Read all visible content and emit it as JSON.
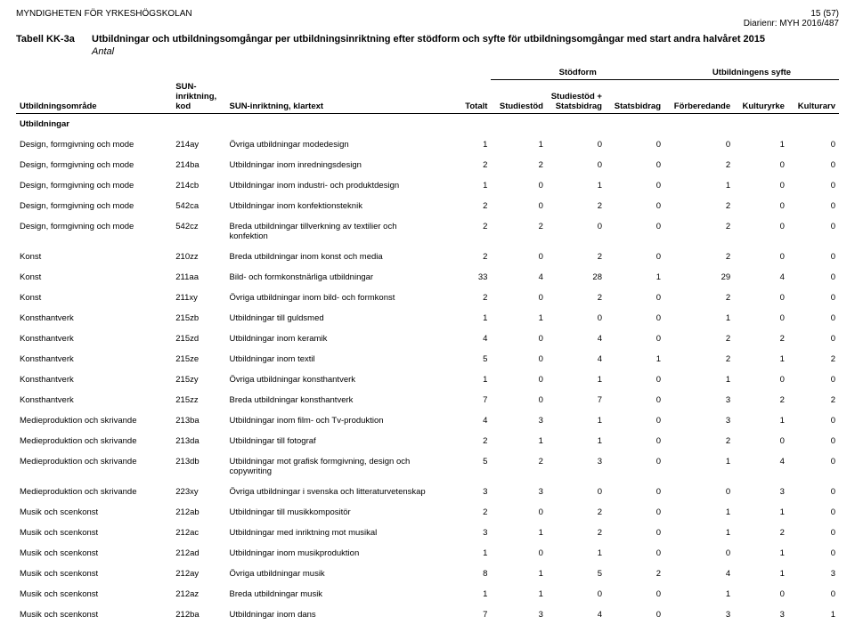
{
  "header": {
    "agency": "MYNDIGHETEN FÖR YRKESHÖGSKOLAN",
    "page_no": "15 (57)",
    "diarienr_label": "Diarienr:",
    "diarienr": "MYH 2016/487"
  },
  "title": {
    "table_label": "Tabell KK-3a",
    "text": "Utbildningar och utbildningsomgångar per utbildningsinriktning efter stödform och syfte för utbildningsomgångar med start andra halvåret 2015",
    "subtitle": "Antal"
  },
  "columns": {
    "area": "Utbildningsområde",
    "kod_line1": "SUN-",
    "kod_line2": "inriktning,",
    "kod_line3": "kod",
    "klartext": "SUN-inriktning, klartext",
    "totalt": "Totalt",
    "stodform_group": "Stödform",
    "studiestod": "Studiestöd",
    "studiestod_stats_line1": "Studiestöd +",
    "studiestod_stats_line2": "Statsbidrag",
    "statsbidrag": "Statsbidrag",
    "syfte_group": "Utbildningens syfte",
    "forberedande": "Förberedande",
    "kulturyrke": "Kulturyrke",
    "kulturarv": "Kulturarv"
  },
  "section_label": "Utbildningar",
  "rows": [
    {
      "area": "Design, formgivning och mode",
      "kod": "214ay",
      "klar": "Övriga utbildningar modedesign",
      "v": [
        1,
        1,
        0,
        0,
        0,
        1,
        0
      ]
    },
    {
      "area": "Design, formgivning och mode",
      "kod": "214ba",
      "klar": "Utbildningar inom inredningsdesign",
      "v": [
        2,
        2,
        0,
        0,
        2,
        0,
        0
      ]
    },
    {
      "area": "Design, formgivning och mode",
      "kod": "214cb",
      "klar": "Utbildningar inom industri- och produktdesign",
      "v": [
        1,
        0,
        1,
        0,
        1,
        0,
        0
      ]
    },
    {
      "area": "Design, formgivning och mode",
      "kod": "542ca",
      "klar": "Utbildningar inom konfektionsteknik",
      "v": [
        2,
        0,
        2,
        0,
        2,
        0,
        0
      ]
    },
    {
      "area": "Design, formgivning och mode",
      "kod": "542cz",
      "klar": "Breda utbildningar tillverkning av textilier och konfektion",
      "v": [
        2,
        2,
        0,
        0,
        2,
        0,
        0
      ]
    },
    {
      "area": "Konst",
      "kod": "210zz",
      "klar": "Breda utbildningar inom konst och media",
      "v": [
        2,
        0,
        2,
        0,
        2,
        0,
        0
      ]
    },
    {
      "area": "Konst",
      "kod": "211aa",
      "klar": "Bild- och formkonstnärliga utbildningar",
      "v": [
        33,
        4,
        28,
        1,
        29,
        4,
        0
      ]
    },
    {
      "area": "Konst",
      "kod": "211xy",
      "klar": "Övriga utbildningar inom bild- och formkonst",
      "v": [
        2,
        0,
        2,
        0,
        2,
        0,
        0
      ]
    },
    {
      "area": "Konsthantverk",
      "kod": "215zb",
      "klar": "Utbildningar till guldsmed",
      "v": [
        1,
        1,
        0,
        0,
        1,
        0,
        0
      ]
    },
    {
      "area": "Konsthantverk",
      "kod": "215zd",
      "klar": "Utbildningar inom keramik",
      "v": [
        4,
        0,
        4,
        0,
        2,
        2,
        0
      ]
    },
    {
      "area": "Konsthantverk",
      "kod": "215ze",
      "klar": "Utbildningar inom textil",
      "v": [
        5,
        0,
        4,
        1,
        2,
        1,
        2
      ]
    },
    {
      "area": "Konsthantverk",
      "kod": "215zy",
      "klar": "Övriga utbildningar konsthantverk",
      "v": [
        1,
        0,
        1,
        0,
        1,
        0,
        0
      ]
    },
    {
      "area": "Konsthantverk",
      "kod": "215zz",
      "klar": "Breda utbildningar konsthantverk",
      "v": [
        7,
        0,
        7,
        0,
        3,
        2,
        2
      ]
    },
    {
      "area": "Medieproduktion och skrivande",
      "kod": "213ba",
      "klar": "Utbildningar inom film- och Tv-produktion",
      "v": [
        4,
        3,
        1,
        0,
        3,
        1,
        0
      ]
    },
    {
      "area": "Medieproduktion och skrivande",
      "kod": "213da",
      "klar": "Utbildningar till fotograf",
      "v": [
        2,
        1,
        1,
        0,
        2,
        0,
        0
      ]
    },
    {
      "area": "Medieproduktion och skrivande",
      "kod": "213db",
      "klar": "Utbildningar mot grafisk formgivning, design och copywriting",
      "v": [
        5,
        2,
        3,
        0,
        1,
        4,
        0
      ]
    },
    {
      "area": "Medieproduktion och skrivande",
      "kod": "223xy",
      "klar": "Övriga utbildningar i svenska och litteraturvetenskap",
      "v": [
        3,
        3,
        0,
        0,
        0,
        3,
        0
      ]
    },
    {
      "area": "Musik och scenkonst",
      "kod": "212ab",
      "klar": "Utbildningar till musikkompositör",
      "v": [
        2,
        0,
        2,
        0,
        1,
        1,
        0
      ]
    },
    {
      "area": "Musik och scenkonst",
      "kod": "212ac",
      "klar": "Utbildningar med inriktning mot musikal",
      "v": [
        3,
        1,
        2,
        0,
        1,
        2,
        0
      ]
    },
    {
      "area": "Musik och scenkonst",
      "kod": "212ad",
      "klar": "Utbildningar inom musikproduktion",
      "v": [
        1,
        0,
        1,
        0,
        0,
        1,
        0
      ]
    },
    {
      "area": "Musik och scenkonst",
      "kod": "212ay",
      "klar": "Övriga utbildningar musik",
      "v": [
        8,
        1,
        5,
        2,
        4,
        1,
        3
      ]
    },
    {
      "area": "Musik och scenkonst",
      "kod": "212az",
      "klar": "Breda utbildningar musik",
      "v": [
        1,
        1,
        0,
        0,
        1,
        0,
        0
      ]
    },
    {
      "area": "Musik och scenkonst",
      "kod": "212ba",
      "klar": "Utbildningar inom dans",
      "v": [
        7,
        3,
        4,
        0,
        3,
        3,
        1
      ]
    }
  ]
}
